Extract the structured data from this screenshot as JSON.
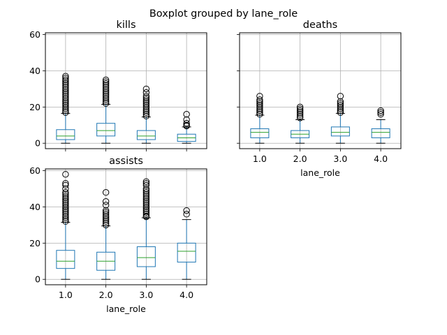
{
  "figure_title": "Boxplot grouped by lane_role",
  "chart_data": [
    {
      "type": "box",
      "title": "kills",
      "xlabel": "",
      "ylabel": "",
      "categories": [
        "1.0",
        "2.0",
        "3.0",
        "4.0"
      ],
      "show_xtick_labels": false,
      "show_ytick_labels": true,
      "ylim": [
        -3,
        61
      ],
      "yticks": [
        0,
        20,
        40,
        60
      ],
      "grid": true,
      "boxes": [
        {
          "category": "1.0",
          "whislo": 0,
          "q1": 2,
          "med": 4,
          "q3": 7.5,
          "whishi": 16.5,
          "outliers": [
            17,
            18,
            19,
            20,
            21,
            22,
            23,
            24,
            25,
            26,
            27,
            28,
            29,
            30,
            31,
            32,
            33,
            34,
            35,
            36,
            37
          ]
        },
        {
          "category": "2.0",
          "whislo": 0,
          "q1": 4,
          "med": 7,
          "q3": 11,
          "whishi": 21.5,
          "outliers": [
            22,
            23,
            24,
            25,
            26,
            27,
            28,
            29,
            30,
            31,
            32,
            33,
            34,
            35
          ]
        },
        {
          "category": "3.0",
          "whislo": 0,
          "q1": 2,
          "med": 4,
          "q3": 7,
          "whishi": 14.5,
          "outliers": [
            15,
            16,
            17,
            18,
            19,
            20,
            21,
            22,
            23,
            24,
            25,
            26,
            28,
            30
          ]
        },
        {
          "category": "4.0",
          "whislo": 0,
          "q1": 1,
          "med": 3,
          "q3": 5,
          "whishi": 9,
          "outliers": [
            9.5,
            10,
            11,
            13,
            16
          ]
        }
      ]
    },
    {
      "type": "box",
      "title": "deaths",
      "xlabel": "lane_role",
      "ylabel": "",
      "categories": [
        "1.0",
        "2.0",
        "3.0",
        "4.0"
      ],
      "show_xtick_labels": true,
      "show_ytick_labels": false,
      "ylim": [
        -3,
        61
      ],
      "yticks": [
        0,
        20,
        40,
        60
      ],
      "grid": true,
      "boxes": [
        {
          "category": "1.0",
          "whislo": 0,
          "q1": 3,
          "med": 6,
          "q3": 8,
          "whishi": 15.5,
          "outliers": [
            16,
            17,
            18,
            19,
            20,
            21,
            22,
            23,
            24,
            26
          ]
        },
        {
          "category": "2.0",
          "whislo": 0,
          "q1": 3,
          "med": 5,
          "q3": 7,
          "whishi": 13,
          "outliers": [
            14,
            15,
            16,
            17,
            18,
            19,
            20
          ]
        },
        {
          "category": "3.0",
          "whislo": 0,
          "q1": 4,
          "med": 6,
          "q3": 9,
          "whishi": 16.5,
          "outliers": [
            17,
            18,
            19,
            20,
            21,
            22,
            23,
            26
          ]
        },
        {
          "category": "4.0",
          "whislo": 0,
          "q1": 3,
          "med": 6,
          "q3": 8,
          "whishi": 13,
          "outliers": [
            16,
            17,
            18
          ]
        }
      ]
    },
    {
      "type": "box",
      "title": "assists",
      "xlabel": "lane_role",
      "ylabel": "",
      "categories": [
        "1.0",
        "2.0",
        "3.0",
        "4.0"
      ],
      "show_xtick_labels": true,
      "show_ytick_labels": true,
      "ylim": [
        -3,
        61
      ],
      "yticks": [
        0,
        20,
        40,
        60
      ],
      "grid": true,
      "boxes": [
        {
          "category": "1.0",
          "whislo": 0,
          "q1": 6,
          "med": 10,
          "q3": 16,
          "whishi": 31.5,
          "outliers": [
            32,
            33,
            34,
            35,
            36,
            37,
            38,
            39,
            40,
            41,
            42,
            43,
            44,
            45,
            46,
            47,
            48,
            50,
            52,
            53,
            58
          ]
        },
        {
          "category": "2.0",
          "whislo": 0,
          "q1": 5,
          "med": 10,
          "q3": 15,
          "whishi": 29.5,
          "outliers": [
            30,
            31,
            32,
            33,
            34,
            35,
            36,
            37,
            38,
            41,
            43,
            48
          ]
        },
        {
          "category": "3.0",
          "whislo": 0,
          "q1": 7,
          "med": 12,
          "q3": 18,
          "whishi": 34,
          "outliers": [
            34.5,
            35,
            36,
            37,
            38,
            39,
            40,
            41,
            42,
            43,
            44,
            45,
            46,
            47,
            48,
            49,
            50,
            52,
            53,
            54
          ]
        },
        {
          "category": "4.0",
          "whislo": 0,
          "q1": 9.5,
          "med": 15.5,
          "q3": 20,
          "whishi": 33,
          "outliers": [
            36,
            38
          ]
        }
      ]
    }
  ]
}
